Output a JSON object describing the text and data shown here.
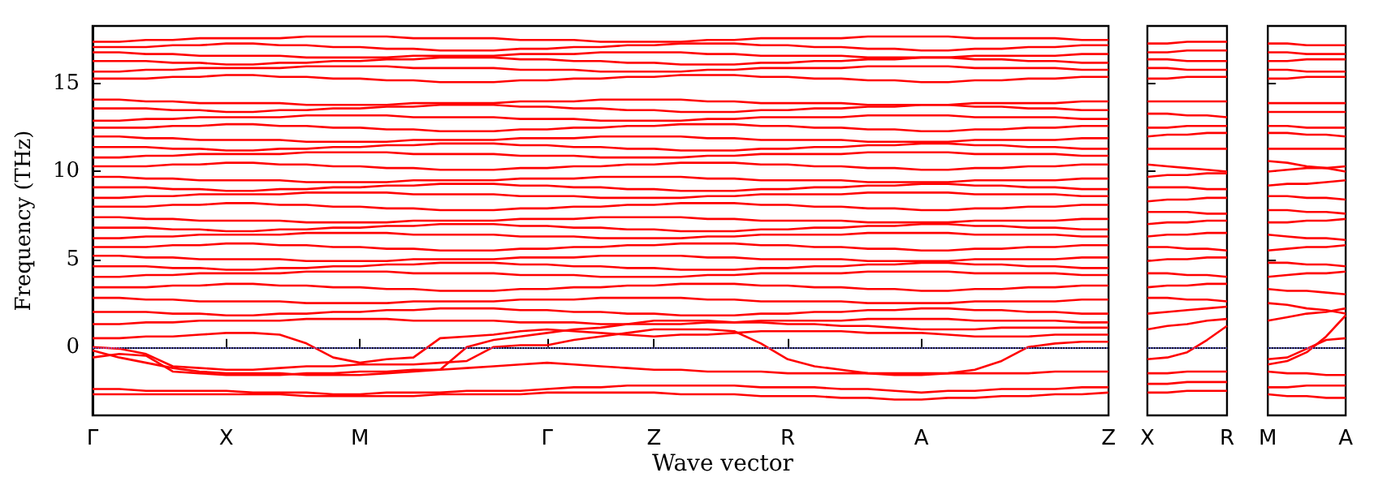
{
  "chart_data": [
    {
      "type": "line",
      "ylabel": "Frequency (THz)",
      "xlabel": "Wave vector",
      "color": "#ff0000",
      "marker": "none",
      "line_style": "solid",
      "grid": false,
      "ylim": [
        -3.9,
        18.3
      ],
      "yticks": [
        0,
        5,
        10,
        15
      ],
      "categories": [
        "Γ",
        null,
        null,
        null,
        null,
        "X",
        null,
        null,
        null,
        null,
        "M",
        null,
        null,
        null,
        null,
        null,
        null,
        "Γ",
        null,
        null,
        null,
        "Z",
        null,
        null,
        null,
        null,
        "R",
        null,
        null,
        null,
        null,
        "A",
        null,
        null,
        null,
        null,
        null,
        null,
        "Z"
      ],
      "ref_lines": [
        {
          "axis": "y",
          "value": 0,
          "label": null,
          "color": "#6f6fff",
          "line_style": "dotted"
        }
      ],
      "series": [
        {
          "values": [
            -2.4,
            -2.4,
            -2.5,
            -2.5,
            -2.5,
            -2.5,
            -2.6,
            -2.6,
            -2.6,
            -2.7,
            -2.7,
            -2.6,
            -2.6,
            -2.6,
            -2.5,
            -2.5,
            -2.5,
            -2.4,
            -2.3,
            -2.3,
            -2.2,
            -2.2,
            -2.2,
            -2.2,
            -2.2,
            -2.3,
            -2.3,
            -2.3,
            -2.4,
            -2.4,
            -2.5,
            -2.6,
            -2.5,
            -2.5,
            -2.4,
            -2.4,
            -2.4,
            -2.3,
            -2.3
          ]
        },
        {
          "values": [
            -2.7,
            -2.7,
            -2.7,
            -2.7,
            -2.7,
            -2.7,
            -2.7,
            -2.7,
            -2.8,
            -2.8,
            -2.8,
            -2.8,
            -2.8,
            -2.7,
            -2.7,
            -2.7,
            -2.7,
            -2.6,
            -2.6,
            -2.6,
            -2.6,
            -2.6,
            -2.7,
            -2.7,
            -2.7,
            -2.8,
            -2.8,
            -2.8,
            -2.9,
            -2.9,
            -3.0,
            -3.0,
            -2.9,
            -2.9,
            -2.8,
            -2.8,
            -2.7,
            -2.7,
            -2.6
          ]
        },
        {
          "values": [
            -0.2,
            -0.6,
            -0.9,
            -1.2,
            -1.4,
            -1.5,
            -1.5,
            -1.5,
            -1.6,
            -1.6,
            -1.6,
            -1.5,
            -1.4,
            -1.3,
            -1.2,
            -1.1,
            -1.0,
            -0.9,
            -1.0,
            -1.1,
            -1.2,
            -1.3,
            -1.3,
            -1.4,
            -1.4,
            -1.4,
            -1.5,
            -1.5,
            -1.5,
            -1.5,
            -1.5,
            -1.5,
            -1.5,
            -1.5,
            -1.5,
            -1.5,
            -1.4,
            -1.4,
            -1.4
          ]
        },
        {
          "values": [
            0,
            -0.1,
            -0.4,
            -1.1,
            -1.2,
            -1.3,
            -1.3,
            -1.2,
            -1.1,
            -1.1,
            -1.0,
            -1.0,
            -1.0,
            -0.9,
            -0.8,
            0,
            0.1,
            0.1,
            0.4,
            0.6,
            0.8,
            1.0,
            1.0,
            1.0,
            0.9,
            0.2,
            -0.7,
            -1.1,
            -1.3,
            -1.5,
            -1.6,
            -1.6,
            -1.5,
            -1.3,
            -0.8,
            0,
            0.2,
            0.3,
            0.3
          ]
        },
        {
          "values": [
            -0.6,
            -0.4,
            -0.5,
            -1.4,
            -1.5,
            -1.6,
            -1.6,
            -1.6,
            -1.5,
            -1.5,
            -1.4,
            -1.4,
            -1.3,
            -1.3,
            0,
            0.4,
            0.6,
            0.8,
            1.0,
            1.1,
            1.3,
            1.5,
            1.5,
            1.5,
            1.4,
            1.4,
            1.3,
            1.3,
            1.2,
            1.2,
            1.1,
            1.0,
            1.0,
            1.0,
            1.1,
            1.1,
            1.1,
            1.1,
            1.1
          ]
        },
        {
          "values": [
            0.5,
            0.5,
            0.6,
            0.6,
            0.7,
            0.8,
            0.8,
            0.7,
            0.2,
            -0.6,
            -0.9,
            -0.7,
            -0.6,
            0.5,
            0.6,
            0.7,
            0.9,
            1.0,
            0.9,
            0.8,
            0.7,
            0.6,
            0.7,
            0.7,
            0.8,
            0.9,
            0.9,
            0.9,
            0.9,
            0.8,
            0.8,
            0.8,
            0.7,
            0.6,
            0.6,
            0.6,
            0.7,
            0.7,
            0.7
          ]
        },
        {
          "values": [
            1.3,
            1.3,
            1.4,
            1.4,
            1.5,
            1.5,
            1.5,
            1.5,
            1.6,
            1.6,
            1.6,
            1.6,
            1.5,
            1.5,
            1.5,
            1.5,
            1.4,
            1.4,
            1.4,
            1.3,
            1.3,
            1.3,
            1.3,
            1.4,
            1.4,
            1.5,
            1.5,
            1.5,
            1.5,
            1.6,
            1.6,
            1.6,
            1.6,
            1.5,
            1.5,
            1.5,
            1.5,
            1.4,
            1.4
          ]
        },
        {
          "values": [
            2.0,
            2.0,
            2.0,
            1.9,
            1.9,
            1.8,
            1.8,
            1.9,
            1.9,
            2.0,
            2.0,
            2.1,
            2.1,
            2.2,
            2.2,
            2.2,
            2.1,
            2.1,
            2.0,
            2.0,
            1.9,
            1.9,
            1.8,
            1.8,
            1.8,
            1.9,
            1.9,
            2.0,
            2.0,
            2.1,
            2.1,
            2.2,
            2.2,
            2.1,
            2.1,
            2.0,
            2.0,
            1.9,
            1.9
          ]
        },
        {
          "values": [
            2.8,
            2.8,
            2.7,
            2.7,
            2.6,
            2.6,
            2.6,
            2.6,
            2.5,
            2.5,
            2.5,
            2.5,
            2.6,
            2.6,
            2.6,
            2.6,
            2.7,
            2.7,
            2.7,
            2.8,
            2.8,
            2.8,
            2.8,
            2.7,
            2.7,
            2.6,
            2.6,
            2.6,
            2.6,
            2.5,
            2.5,
            2.5,
            2.5,
            2.6,
            2.6,
            2.6,
            2.6,
            2.7,
            2.7
          ]
        },
        {
          "values": [
            3.4,
            3.4,
            3.4,
            3.5,
            3.5,
            3.6,
            3.6,
            3.5,
            3.5,
            3.4,
            3.4,
            3.3,
            3.3,
            3.2,
            3.2,
            3.2,
            3.3,
            3.3,
            3.4,
            3.4,
            3.5,
            3.5,
            3.6,
            3.6,
            3.6,
            3.5,
            3.5,
            3.4,
            3.4,
            3.3,
            3.3,
            3.2,
            3.2,
            3.3,
            3.3,
            3.4,
            3.4,
            3.5,
            3.5
          ]
        },
        {
          "values": [
            4.0,
            4.0,
            4.1,
            4.1,
            4.2,
            4.2,
            4.2,
            4.2,
            4.3,
            4.3,
            4.3,
            4.3,
            4.2,
            4.2,
            4.2,
            4.2,
            4.1,
            4.1,
            4.1,
            4.0,
            4.0,
            4.0,
            4.0,
            4.1,
            4.1,
            4.2,
            4.2,
            4.2,
            4.2,
            4.3,
            4.3,
            4.3,
            4.3,
            4.2,
            4.2,
            4.2,
            4.2,
            4.1,
            4.1
          ]
        },
        {
          "values": [
            4.6,
            4.6,
            4.6,
            4.5,
            4.5,
            4.4,
            4.4,
            4.5,
            4.5,
            4.6,
            4.6,
            4.7,
            4.7,
            4.8,
            4.8,
            4.8,
            4.7,
            4.7,
            4.6,
            4.6,
            4.5,
            4.5,
            4.4,
            4.4,
            4.4,
            4.5,
            4.5,
            4.6,
            4.6,
            4.7,
            4.7,
            4.8,
            4.8,
            4.7,
            4.7,
            4.6,
            4.6,
            4.5,
            4.5
          ]
        },
        {
          "values": [
            5.2,
            5.2,
            5.1,
            5.1,
            5.0,
            5.0,
            5.0,
            5.0,
            4.9,
            4.9,
            4.9,
            4.9,
            5.0,
            5.0,
            5.0,
            5.0,
            5.1,
            5.1,
            5.1,
            5.2,
            5.2,
            5.2,
            5.2,
            5.1,
            5.1,
            5.0,
            5.0,
            5.0,
            5.0,
            4.9,
            4.9,
            4.9,
            4.9,
            5.0,
            5.0,
            5.0,
            5.0,
            5.1,
            5.1
          ]
        },
        {
          "values": [
            5.7,
            5.7,
            5.7,
            5.8,
            5.8,
            5.9,
            5.9,
            5.8,
            5.8,
            5.7,
            5.7,
            5.6,
            5.6,
            5.5,
            5.5,
            5.5,
            5.6,
            5.6,
            5.7,
            5.7,
            5.8,
            5.8,
            5.9,
            5.9,
            5.9,
            5.8,
            5.8,
            5.7,
            5.7,
            5.6,
            5.6,
            5.5,
            5.5,
            5.6,
            5.6,
            5.7,
            5.7,
            5.8,
            5.8
          ]
        },
        {
          "values": [
            6.2,
            6.2,
            6.3,
            6.3,
            6.4,
            6.4,
            6.4,
            6.4,
            6.5,
            6.5,
            6.5,
            6.5,
            6.4,
            6.4,
            6.4,
            6.4,
            6.3,
            6.3,
            6.3,
            6.2,
            6.2,
            6.2,
            6.2,
            6.3,
            6.3,
            6.4,
            6.4,
            6.4,
            6.4,
            6.5,
            6.5,
            6.5,
            6.5,
            6.4,
            6.4,
            6.4,
            6.4,
            6.3,
            6.3
          ]
        },
        {
          "values": [
            6.8,
            6.8,
            6.8,
            6.7,
            6.7,
            6.6,
            6.6,
            6.7,
            6.7,
            6.8,
            6.8,
            6.9,
            6.9,
            7.0,
            7.0,
            7.0,
            6.9,
            6.9,
            6.8,
            6.8,
            6.7,
            6.7,
            6.6,
            6.6,
            6.6,
            6.7,
            6.7,
            6.8,
            6.8,
            6.9,
            6.9,
            7.0,
            7.0,
            6.9,
            6.9,
            6.8,
            6.8,
            6.7,
            6.7
          ]
        },
        {
          "values": [
            7.4,
            7.4,
            7.3,
            7.3,
            7.2,
            7.2,
            7.2,
            7.2,
            7.1,
            7.1,
            7.1,
            7.1,
            7.2,
            7.2,
            7.2,
            7.2,
            7.3,
            7.3,
            7.3,
            7.4,
            7.4,
            7.4,
            7.4,
            7.3,
            7.3,
            7.2,
            7.2,
            7.2,
            7.2,
            7.1,
            7.1,
            7.1,
            7.1,
            7.2,
            7.2,
            7.2,
            7.2,
            7.3,
            7.3
          ]
        },
        {
          "values": [
            8.0,
            8.0,
            8.0,
            8.1,
            8.1,
            8.2,
            8.2,
            8.1,
            8.1,
            8.0,
            8.0,
            7.9,
            7.9,
            7.8,
            7.8,
            7.8,
            7.9,
            7.9,
            8.0,
            8.0,
            8.1,
            8.1,
            8.2,
            8.2,
            8.2,
            8.1,
            8.1,
            8.0,
            8.0,
            7.9,
            7.9,
            7.8,
            7.8,
            7.9,
            7.9,
            8.0,
            8.0,
            8.1,
            8.1
          ]
        },
        {
          "values": [
            8.5,
            8.5,
            8.6,
            8.6,
            8.7,
            8.7,
            8.7,
            8.7,
            8.8,
            8.8,
            8.8,
            8.8,
            8.7,
            8.7,
            8.7,
            8.7,
            8.6,
            8.6,
            8.6,
            8.5,
            8.5,
            8.5,
            8.5,
            8.6,
            8.6,
            8.7,
            8.7,
            8.7,
            8.7,
            8.8,
            8.8,
            8.8,
            8.8,
            8.7,
            8.7,
            8.7,
            8.7,
            8.6,
            8.6
          ]
        },
        {
          "values": [
            9.1,
            9.1,
            9.1,
            9.0,
            9.0,
            8.9,
            8.9,
            9.0,
            9.0,
            9.1,
            9.1,
            9.2,
            9.2,
            9.3,
            9.3,
            9.3,
            9.2,
            9.2,
            9.1,
            9.1,
            9.0,
            9.0,
            8.9,
            8.9,
            8.9,
            9.0,
            9.0,
            9.1,
            9.1,
            9.2,
            9.2,
            9.3,
            9.3,
            9.2,
            9.2,
            9.1,
            9.1,
            9.0,
            9.0
          ]
        },
        {
          "values": [
            9.7,
            9.7,
            9.6,
            9.6,
            9.5,
            9.5,
            9.5,
            9.5,
            9.4,
            9.4,
            9.4,
            9.4,
            9.5,
            9.5,
            9.5,
            9.5,
            9.6,
            9.6,
            9.6,
            9.7,
            9.7,
            9.7,
            9.7,
            9.6,
            9.6,
            9.5,
            9.5,
            9.5,
            9.5,
            9.4,
            9.4,
            9.4,
            9.4,
            9.5,
            9.5,
            9.5,
            9.5,
            9.6,
            9.6
          ]
        },
        {
          "values": [
            10.3,
            10.3,
            10.3,
            10.4,
            10.4,
            10.5,
            10.5,
            10.4,
            10.4,
            10.3,
            10.3,
            10.2,
            10.2,
            10.1,
            10.1,
            10.1,
            10.2,
            10.2,
            10.3,
            10.3,
            10.4,
            10.4,
            10.5,
            10.5,
            10.5,
            10.4,
            10.4,
            10.3,
            10.3,
            10.2,
            10.2,
            10.1,
            10.1,
            10.2,
            10.2,
            10.3,
            10.3,
            10.4,
            10.4
          ]
        },
        {
          "values": [
            10.8,
            10.8,
            10.9,
            10.9,
            11.0,
            11.0,
            11.0,
            11.0,
            11.1,
            11.1,
            11.1,
            11.1,
            11.0,
            11.0,
            11.0,
            11.0,
            10.9,
            10.9,
            10.9,
            10.8,
            10.8,
            10.8,
            10.8,
            10.9,
            10.9,
            11.0,
            11.0,
            11.0,
            11.0,
            11.1,
            11.1,
            11.1,
            11.1,
            11.0,
            11.0,
            11.0,
            11.0,
            10.9,
            10.9
          ]
        },
        {
          "values": [
            11.4,
            11.4,
            11.4,
            11.3,
            11.3,
            11.2,
            11.2,
            11.3,
            11.3,
            11.4,
            11.4,
            11.5,
            11.5,
            11.6,
            11.6,
            11.6,
            11.5,
            11.5,
            11.4,
            11.4,
            11.3,
            11.3,
            11.2,
            11.2,
            11.2,
            11.3,
            11.3,
            11.4,
            11.4,
            11.5,
            11.5,
            11.6,
            11.6,
            11.5,
            11.5,
            11.4,
            11.4,
            11.3,
            11.3
          ]
        },
        {
          "values": [
            12.0,
            12.0,
            11.9,
            11.9,
            11.8,
            11.8,
            11.8,
            11.8,
            11.7,
            11.7,
            11.7,
            11.7,
            11.8,
            11.8,
            11.8,
            11.8,
            11.9,
            11.9,
            11.9,
            12.0,
            12.0,
            12.0,
            12.0,
            11.9,
            11.9,
            11.8,
            11.8,
            11.8,
            11.8,
            11.7,
            11.7,
            11.7,
            11.7,
            11.8,
            11.8,
            11.8,
            11.8,
            11.9,
            11.9
          ]
        },
        {
          "values": [
            12.5,
            12.5,
            12.5,
            12.6,
            12.6,
            12.7,
            12.7,
            12.6,
            12.6,
            12.5,
            12.5,
            12.4,
            12.4,
            12.3,
            12.3,
            12.3,
            12.4,
            12.4,
            12.5,
            12.5,
            12.6,
            12.6,
            12.7,
            12.7,
            12.7,
            12.6,
            12.6,
            12.5,
            12.5,
            12.4,
            12.4,
            12.3,
            12.3,
            12.4,
            12.4,
            12.5,
            12.5,
            12.6,
            12.6
          ]
        },
        {
          "values": [
            12.9,
            12.9,
            13.0,
            13.0,
            13.1,
            13.1,
            13.1,
            13.1,
            13.2,
            13.2,
            13.2,
            13.2,
            13.1,
            13.1,
            13.1,
            13.1,
            13.0,
            13.0,
            13.0,
            12.9,
            12.9,
            12.9,
            12.9,
            13.0,
            13.0,
            13.1,
            13.1,
            13.1,
            13.1,
            13.2,
            13.2,
            13.2,
            13.2,
            13.1,
            13.1,
            13.1,
            13.1,
            13.0,
            13.0
          ]
        },
        {
          "values": [
            13.6,
            13.6,
            13.6,
            13.5,
            13.5,
            13.4,
            13.4,
            13.5,
            13.5,
            13.6,
            13.6,
            13.7,
            13.7,
            13.8,
            13.8,
            13.8,
            13.7,
            13.7,
            13.6,
            13.6,
            13.5,
            13.5,
            13.4,
            13.4,
            13.4,
            13.5,
            13.5,
            13.6,
            13.6,
            13.7,
            13.7,
            13.8,
            13.8,
            13.7,
            13.7,
            13.6,
            13.6,
            13.5,
            13.5
          ]
        },
        {
          "values": [
            14.1,
            14.1,
            14.0,
            14.0,
            13.9,
            13.9,
            13.9,
            13.9,
            13.8,
            13.8,
            13.8,
            13.8,
            13.9,
            13.9,
            13.9,
            13.9,
            14.0,
            14.0,
            14.0,
            14.1,
            14.1,
            14.1,
            14.1,
            14.0,
            14.0,
            13.9,
            13.9,
            13.9,
            13.9,
            13.8,
            13.8,
            13.8,
            13.8,
            13.9,
            13.9,
            13.9,
            13.9,
            14.0,
            14.0
          ]
        },
        {
          "values": [
            15.3,
            15.3,
            15.3,
            15.4,
            15.4,
            15.5,
            15.5,
            15.4,
            15.4,
            15.3,
            15.3,
            15.2,
            15.2,
            15.1,
            15.1,
            15.1,
            15.2,
            15.2,
            15.3,
            15.3,
            15.4,
            15.4,
            15.5,
            15.5,
            15.5,
            15.4,
            15.4,
            15.3,
            15.3,
            15.2,
            15.2,
            15.1,
            15.1,
            15.2,
            15.2,
            15.3,
            15.3,
            15.4,
            15.4
          ]
        },
        {
          "values": [
            15.7,
            15.7,
            15.8,
            15.8,
            15.9,
            15.9,
            15.9,
            15.9,
            16.0,
            16.0,
            16.0,
            16.0,
            15.9,
            15.9,
            15.9,
            15.9,
            15.8,
            15.8,
            15.8,
            15.7,
            15.7,
            15.7,
            15.7,
            15.8,
            15.8,
            15.9,
            15.9,
            15.9,
            15.9,
            16.0,
            16.0,
            16.0,
            16.0,
            15.9,
            15.9,
            15.9,
            15.9,
            15.8,
            15.8
          ]
        },
        {
          "values": [
            16.3,
            16.3,
            16.3,
            16.2,
            16.2,
            16.1,
            16.1,
            16.2,
            16.2,
            16.3,
            16.3,
            16.4,
            16.4,
            16.5,
            16.5,
            16.5,
            16.4,
            16.4,
            16.3,
            16.3,
            16.2,
            16.2,
            16.1,
            16.1,
            16.1,
            16.2,
            16.2,
            16.3,
            16.3,
            16.4,
            16.4,
            16.5,
            16.5,
            16.4,
            16.4,
            16.3,
            16.3,
            16.2,
            16.2
          ]
        },
        {
          "values": [
            16.8,
            16.8,
            16.7,
            16.7,
            16.6,
            16.6,
            16.6,
            16.6,
            16.5,
            16.5,
            16.5,
            16.5,
            16.6,
            16.6,
            16.6,
            16.6,
            16.7,
            16.7,
            16.7,
            16.8,
            16.8,
            16.8,
            16.8,
            16.7,
            16.7,
            16.6,
            16.6,
            16.6,
            16.6,
            16.5,
            16.5,
            16.5,
            16.5,
            16.6,
            16.6,
            16.6,
            16.6,
            16.7,
            16.7
          ]
        },
        {
          "values": [
            17.1,
            17.1,
            17.1,
            17.2,
            17.2,
            17.3,
            17.3,
            17.2,
            17.2,
            17.1,
            17.1,
            17.0,
            17.0,
            16.9,
            16.9,
            16.9,
            17.0,
            17.0,
            17.1,
            17.1,
            17.2,
            17.2,
            17.3,
            17.3,
            17.3,
            17.2,
            17.2,
            17.1,
            17.1,
            17.0,
            17.0,
            16.9,
            16.9,
            17.0,
            17.0,
            17.1,
            17.1,
            17.2,
            17.2
          ]
        },
        {
          "values": [
            17.4,
            17.4,
            17.5,
            17.5,
            17.6,
            17.6,
            17.6,
            17.6,
            17.7,
            17.7,
            17.7,
            17.7,
            17.6,
            17.6,
            17.6,
            17.6,
            17.5,
            17.5,
            17.5,
            17.4,
            17.4,
            17.4,
            17.4,
            17.5,
            17.5,
            17.6,
            17.6,
            17.6,
            17.6,
            17.7,
            17.7,
            17.7,
            17.7,
            17.6,
            17.6,
            17.6,
            17.6,
            17.5,
            17.5
          ]
        }
      ]
    },
    {
      "type": "line",
      "color": "#ff0000",
      "marker": "none",
      "line_style": "solid",
      "grid": false,
      "tick_labels": "x",
      "ylim": [
        -3.9,
        18.3
      ],
      "yticks": [
        0,
        5,
        10,
        15
      ],
      "categories": [
        "X",
        null,
        null,
        null,
        "R"
      ],
      "ref_lines": [
        {
          "axis": "y",
          "value": 0,
          "label": null,
          "color": "#6f6fff",
          "line_style": "dotted"
        }
      ],
      "series": [
        {
          "values": [
            -2.6,
            -2.6,
            -2.5,
            -2.5,
            -2.5
          ]
        },
        {
          "values": [
            -2.1,
            -2.1,
            -2.0,
            -2.0,
            -2.0
          ]
        },
        {
          "values": [
            -1.5,
            -1.5,
            -1.4,
            -1.4,
            -1.4
          ]
        },
        {
          "values": [
            -0.7,
            -0.6,
            -0.3,
            0.4,
            1.2
          ]
        },
        {
          "values": [
            1.0,
            1.2,
            1.3,
            1.5,
            1.6
          ]
        },
        {
          "values": [
            1.9,
            2.0,
            2.1,
            2.2,
            2.3
          ]
        },
        {
          "values": [
            2.8,
            2.8,
            2.7,
            2.7,
            2.6
          ]
        },
        {
          "values": [
            3.4,
            3.5,
            3.5,
            3.6,
            3.6
          ]
        },
        {
          "values": [
            4.2,
            4.2,
            4.1,
            4.1,
            4.0
          ]
        },
        {
          "values": [
            4.9,
            5.0,
            5.0,
            5.1,
            5.1
          ]
        },
        {
          "values": [
            5.7,
            5.7,
            5.6,
            5.6,
            5.5
          ]
        },
        {
          "values": [
            6.3,
            6.4,
            6.4,
            6.5,
            6.5
          ]
        },
        {
          "values": [
            7.0,
            7.1,
            7.1,
            7.2,
            7.2
          ]
        },
        {
          "values": [
            7.7,
            7.7,
            7.7,
            7.6,
            7.6
          ]
        },
        {
          "values": [
            8.3,
            8.4,
            8.4,
            8.5,
            8.5
          ]
        },
        {
          "values": [
            9.1,
            9.1,
            9.1,
            9.0,
            9.0
          ]
        },
        {
          "values": [
            9.7,
            9.8,
            9.8,
            9.9,
            9.9
          ]
        },
        {
          "values": [
            10.4,
            10.3,
            10.2,
            10.1,
            10.0
          ]
        },
        {
          "values": [
            11.3,
            11.3,
            11.3,
            11.3,
            11.3
          ]
        },
        {
          "values": [
            12.0,
            12.1,
            12.1,
            12.2,
            12.2
          ]
        },
        {
          "values": [
            12.5,
            12.5,
            12.6,
            12.6,
            12.6
          ]
        },
        {
          "values": [
            13.3,
            13.3,
            13.2,
            13.2,
            13.1
          ]
        },
        {
          "values": [
            14.0,
            14.0,
            14.0,
            14.0,
            14.0
          ]
        },
        {
          "values": [
            15.3,
            15.3,
            15.4,
            15.4,
            15.4
          ]
        },
        {
          "values": [
            15.9,
            15.9,
            15.8,
            15.8,
            15.8
          ]
        },
        {
          "values": [
            16.4,
            16.4,
            16.3,
            16.3,
            16.3
          ]
        },
        {
          "values": [
            16.8,
            16.8,
            16.9,
            16.9,
            16.9
          ]
        },
        {
          "values": [
            17.3,
            17.3,
            17.4,
            17.4,
            17.4
          ]
        }
      ]
    },
    {
      "type": "line",
      "color": "#ff0000",
      "marker": "none",
      "line_style": "solid",
      "grid": false,
      "tick_labels": "x",
      "ylim": [
        -3.9,
        18.3
      ],
      "yticks": [
        0,
        5,
        10,
        15
      ],
      "categories": [
        "M",
        null,
        null,
        null,
        "A"
      ],
      "ref_lines": [
        {
          "axis": "y",
          "value": 0,
          "label": null,
          "color": "#6f6fff",
          "line_style": "dotted"
        }
      ],
      "series": [
        {
          "values": [
            -2.7,
            -2.8,
            -2.8,
            -2.9,
            -2.9
          ]
        },
        {
          "values": [
            -2.3,
            -2.3,
            -2.2,
            -2.2,
            -2.2
          ]
        },
        {
          "values": [
            -1.4,
            -1.5,
            -1.5,
            -1.6,
            -1.6
          ]
        },
        {
          "values": [
            -1.0,
            -0.8,
            -0.3,
            0.6,
            1.8
          ]
        },
        {
          "values": [
            -0.7,
            -0.6,
            -0.1,
            0.4,
            0.5
          ]
        },
        {
          "values": [
            1.5,
            1.7,
            1.9,
            2.0,
            2.2
          ]
        },
        {
          "values": [
            2.5,
            2.4,
            2.2,
            2.1,
            1.9
          ]
        },
        {
          "values": [
            3.3,
            3.2,
            3.2,
            3.1,
            3.0
          ]
        },
        {
          "values": [
            4.0,
            4.1,
            4.2,
            4.2,
            4.3
          ]
        },
        {
          "values": [
            4.8,
            4.8,
            4.7,
            4.7,
            4.6
          ]
        },
        {
          "values": [
            5.5,
            5.6,
            5.7,
            5.7,
            5.8
          ]
        },
        {
          "values": [
            6.4,
            6.3,
            6.2,
            6.2,
            6.1
          ]
        },
        {
          "values": [
            7.1,
            7.1,
            7.2,
            7.2,
            7.3
          ]
        },
        {
          "values": [
            7.8,
            7.8,
            7.7,
            7.7,
            7.6
          ]
        },
        {
          "values": [
            8.6,
            8.6,
            8.5,
            8.5,
            8.4
          ]
        },
        {
          "values": [
            9.2,
            9.3,
            9.3,
            9.4,
            9.5
          ]
        },
        {
          "values": [
            10.0,
            10.1,
            10.2,
            10.2,
            10.3
          ]
        },
        {
          "values": [
            10.6,
            10.5,
            10.3,
            10.2,
            10.0
          ]
        },
        {
          "values": [
            11.3,
            11.3,
            11.3,
            11.3,
            11.3
          ]
        },
        {
          "values": [
            12.2,
            12.2,
            12.1,
            12.1,
            12.0
          ]
        },
        {
          "values": [
            12.6,
            12.6,
            12.5,
            12.5,
            12.5
          ]
        },
        {
          "values": [
            13.4,
            13.4,
            13.4,
            13.4,
            13.4
          ]
        },
        {
          "values": [
            13.9,
            13.9,
            13.9,
            13.9,
            13.9
          ]
        },
        {
          "values": [
            15.3,
            15.3,
            15.4,
            15.4,
            15.4
          ]
        },
        {
          "values": [
            15.8,
            15.8,
            15.7,
            15.7,
            15.7
          ]
        },
        {
          "values": [
            16.3,
            16.3,
            16.4,
            16.4,
            16.4
          ]
        },
        {
          "values": [
            16.8,
            16.8,
            16.7,
            16.7,
            16.7
          ]
        },
        {
          "values": [
            17.3,
            17.3,
            17.2,
            17.2,
            17.2
          ]
        }
      ]
    }
  ]
}
